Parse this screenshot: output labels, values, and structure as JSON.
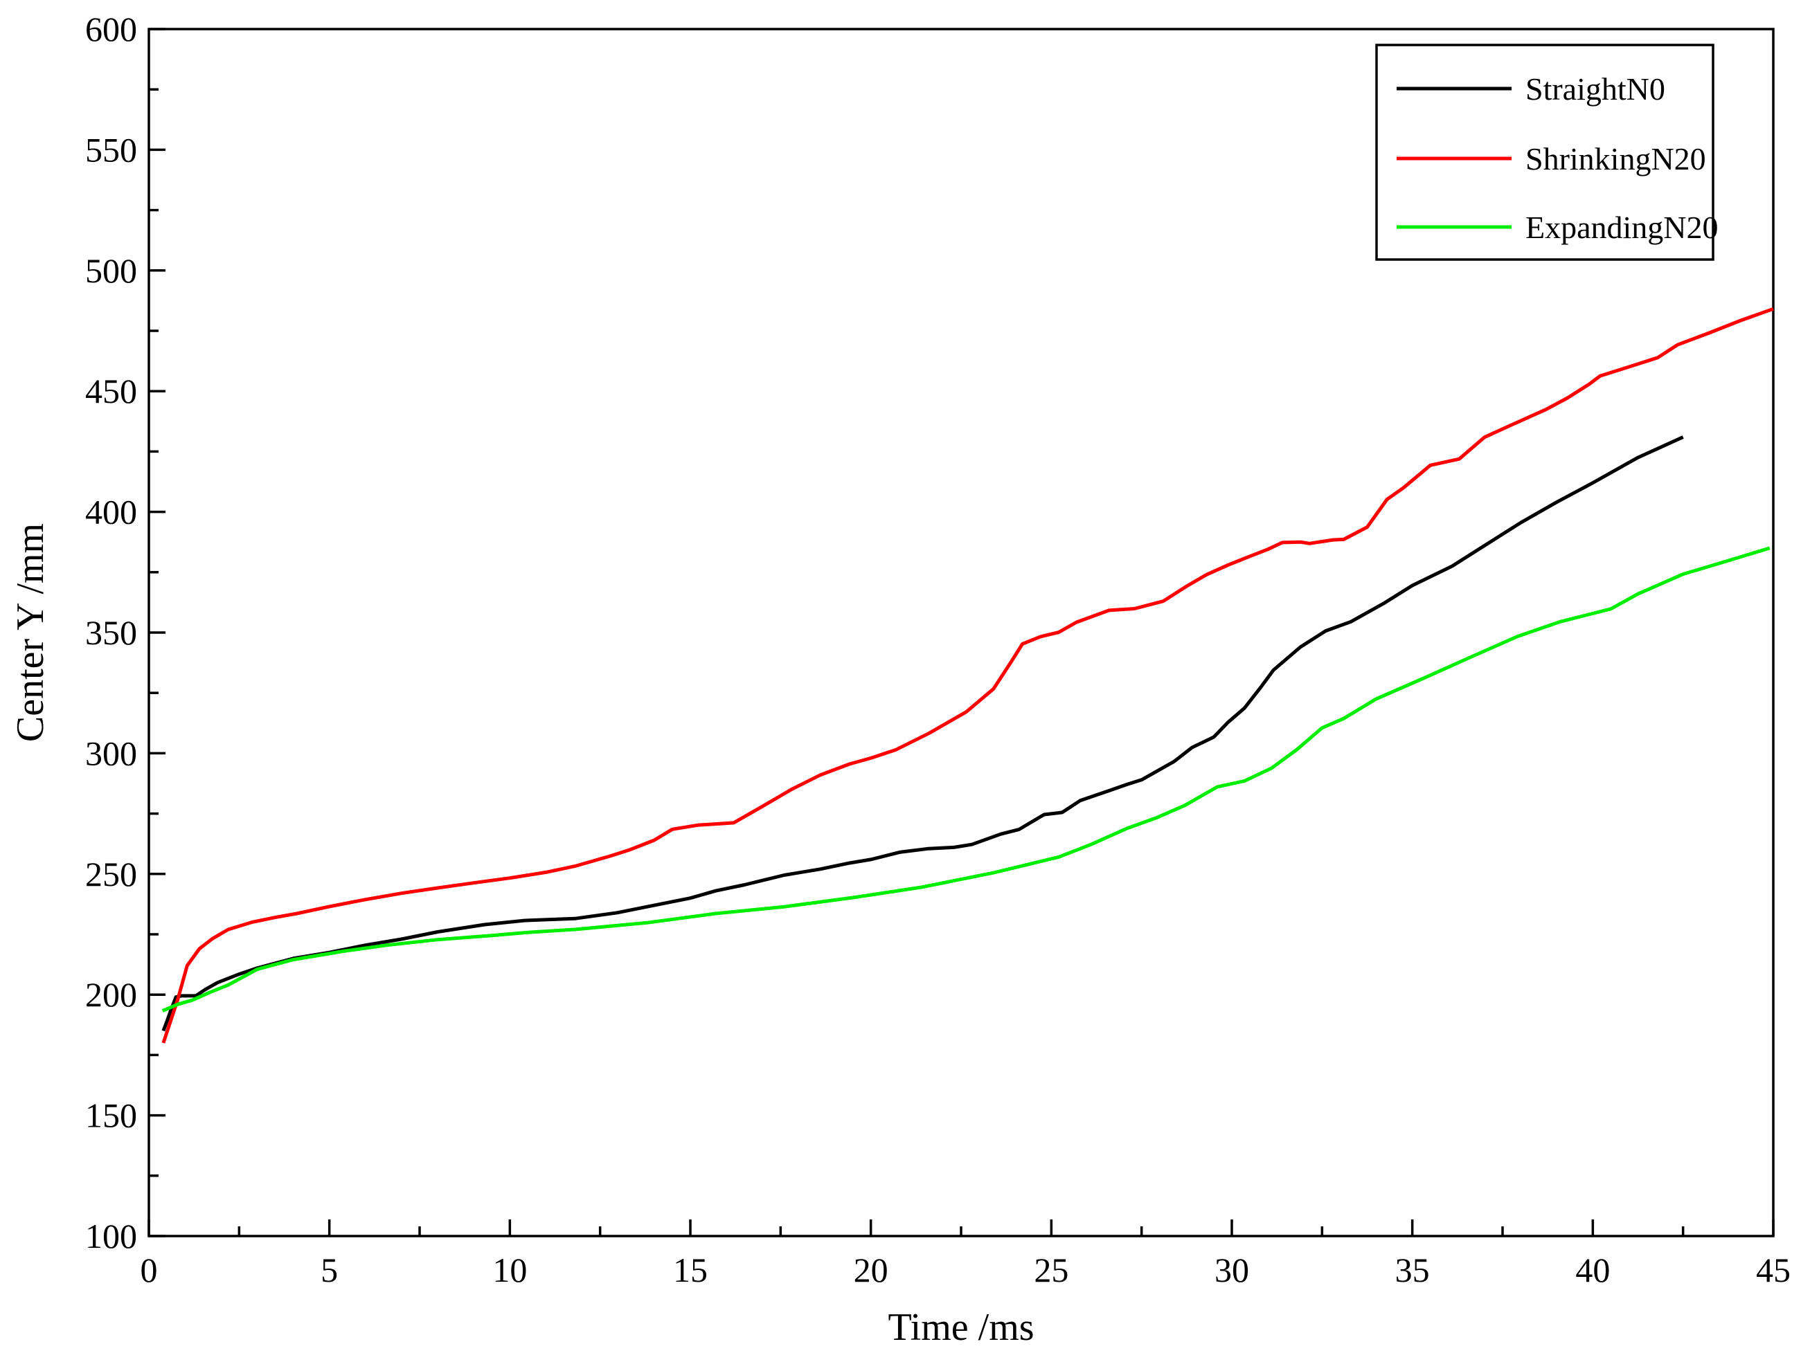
{
  "chart_data": {
    "type": "line",
    "title": "",
    "xlabel": "Time /ms",
    "ylabel": "Center Y /mm",
    "xlim": [
      0,
      45
    ],
    "ylim": [
      100,
      600
    ],
    "x_major_ticks": [
      0,
      5,
      10,
      15,
      20,
      25,
      30,
      35,
      40,
      45
    ],
    "y_major_ticks": [
      100,
      150,
      200,
      250,
      300,
      350,
      400,
      450,
      500,
      550,
      600
    ],
    "x_minor_step": 2.5,
    "y_minor_step": 25,
    "grid": false,
    "legend_position": "top-right",
    "frame": true,
    "axis_color": "#000000",
    "background_color": "#ffffff",
    "series": [
      {
        "name": "StraightN0",
        "color": "#000000",
        "points": [
          [
            0.4,
            185
          ],
          [
            0.5,
            189
          ],
          [
            0.62,
            194
          ],
          [
            0.75,
            199
          ],
          [
            0.9,
            199.5
          ],
          [
            1.3,
            199.5
          ],
          [
            1.55,
            202
          ],
          [
            1.9,
            205
          ],
          [
            2.5,
            208.5
          ],
          [
            3,
            211
          ],
          [
            4,
            215
          ],
          [
            5,
            217.5
          ],
          [
            6,
            220.5
          ],
          [
            7,
            223
          ],
          [
            8,
            226
          ],
          [
            9.3,
            229
          ],
          [
            10.4,
            230.7
          ],
          [
            11.8,
            231.5
          ],
          [
            13,
            234
          ],
          [
            13.8,
            236.4
          ],
          [
            15,
            240
          ],
          [
            15.7,
            243
          ],
          [
            16.5,
            245.5
          ],
          [
            17.6,
            249.5
          ],
          [
            18.6,
            252
          ],
          [
            19.4,
            254.5
          ],
          [
            20,
            256
          ],
          [
            20.8,
            259
          ],
          [
            21.6,
            260.5
          ],
          [
            22.3,
            261
          ],
          [
            22.8,
            262.2
          ],
          [
            23.6,
            266.5
          ],
          [
            24.1,
            268.4
          ],
          [
            24.8,
            274.6
          ],
          [
            25.3,
            275.5
          ],
          [
            25.8,
            280.4
          ],
          [
            26.6,
            284.5
          ],
          [
            27.1,
            287.1
          ],
          [
            27.5,
            289
          ],
          [
            28.4,
            296.6
          ],
          [
            28.9,
            302.4
          ],
          [
            29.5,
            306.7
          ],
          [
            29.9,
            312.9
          ],
          [
            30.35,
            318.7
          ],
          [
            30.8,
            327.3
          ],
          [
            31.15,
            334.4
          ],
          [
            31.9,
            344
          ],
          [
            32.6,
            350.7
          ],
          [
            33.3,
            354.5
          ],
          [
            34.2,
            362
          ],
          [
            35,
            369.5
          ],
          [
            36.1,
            377.5
          ],
          [
            37,
            386
          ],
          [
            38,
            395.5
          ],
          [
            39,
            404
          ],
          [
            40,
            412
          ],
          [
            41.25,
            422.5
          ],
          [
            42.5,
            431
          ]
        ]
      },
      {
        "name": "ShrinkingN20",
        "color": "#ff0000",
        "points": [
          [
            0.4,
            180
          ],
          [
            0.6,
            189
          ],
          [
            0.8,
            198
          ],
          [
            1.06,
            212
          ],
          [
            1.4,
            219
          ],
          [
            1.76,
            223.2
          ],
          [
            2.2,
            227
          ],
          [
            2.85,
            230
          ],
          [
            3.5,
            232
          ],
          [
            4.1,
            233.6
          ],
          [
            5,
            236.5
          ],
          [
            6,
            239.4
          ],
          [
            7,
            242
          ],
          [
            8,
            244.2
          ],
          [
            9,
            246.3
          ],
          [
            10,
            248.3
          ],
          [
            11,
            250.7
          ],
          [
            11.8,
            253.2
          ],
          [
            12.8,
            257.5
          ],
          [
            13.3,
            259.9
          ],
          [
            14,
            264
          ],
          [
            14.5,
            268.5
          ],
          [
            15.2,
            270.2
          ],
          [
            16.2,
            271.2
          ],
          [
            17,
            278
          ],
          [
            17.8,
            285
          ],
          [
            18.6,
            291
          ],
          [
            19.4,
            295.5
          ],
          [
            20,
            298
          ],
          [
            20.7,
            301.5
          ],
          [
            21.6,
            308.2
          ],
          [
            22.65,
            317.2
          ],
          [
            23.4,
            326.7
          ],
          [
            23.9,
            338.2
          ],
          [
            24.2,
            345.3
          ],
          [
            24.7,
            348.3
          ],
          [
            25.2,
            350.1
          ],
          [
            25.7,
            354.3
          ],
          [
            26.6,
            359.2
          ],
          [
            27.3,
            359.9
          ],
          [
            28.1,
            363
          ],
          [
            28.75,
            369.2
          ],
          [
            29.3,
            374
          ],
          [
            29.9,
            378
          ],
          [
            30.5,
            381.6
          ],
          [
            31,
            384.5
          ],
          [
            31.4,
            387.3
          ],
          [
            31.9,
            387.5
          ],
          [
            32.15,
            386.9
          ],
          [
            32.8,
            388.4
          ],
          [
            33.1,
            388.6
          ],
          [
            33.75,
            393.7
          ],
          [
            34.3,
            405.2
          ],
          [
            34.75,
            409.9
          ],
          [
            35.5,
            419.3
          ],
          [
            36.3,
            421.9
          ],
          [
            37,
            430.9
          ],
          [
            37.7,
            435.7
          ],
          [
            38.7,
            442.4
          ],
          [
            39.3,
            447.2
          ],
          [
            39.9,
            452.9
          ],
          [
            40.2,
            456.3
          ],
          [
            40.9,
            459.6
          ],
          [
            41.8,
            463.9
          ],
          [
            42.35,
            469.2
          ],
          [
            43.2,
            474
          ],
          [
            44.1,
            479.3
          ],
          [
            45,
            484.1
          ]
        ]
      },
      {
        "name": "ExpandingN20",
        "color": "#00ee00",
        "points": [
          [
            0.38,
            193.3
          ],
          [
            0.8,
            196
          ],
          [
            1.2,
            197.7
          ],
          [
            1.7,
            201
          ],
          [
            2.2,
            204
          ],
          [
            3,
            210.5
          ],
          [
            4,
            214.5
          ],
          [
            5.4,
            218
          ],
          [
            6.6,
            220.5
          ],
          [
            8,
            222.8
          ],
          [
            9.5,
            224.5
          ],
          [
            10.5,
            225.8
          ],
          [
            11.8,
            227
          ],
          [
            13.8,
            229.8
          ],
          [
            15.7,
            233.6
          ],
          [
            17.6,
            236.4
          ],
          [
            19.5,
            240.2
          ],
          [
            21.4,
            244.5
          ],
          [
            23.4,
            250.5
          ],
          [
            25.2,
            257
          ],
          [
            26.1,
            262.2
          ],
          [
            27.1,
            268.9
          ],
          [
            27.9,
            273.2
          ],
          [
            28.7,
            278.4
          ],
          [
            29.6,
            286.1
          ],
          [
            30.35,
            288.5
          ],
          [
            31.1,
            293.8
          ],
          [
            31.8,
            301.5
          ],
          [
            32.5,
            310.5
          ],
          [
            33.1,
            314.4
          ],
          [
            34,
            322.5
          ],
          [
            35.3,
            331
          ],
          [
            36.6,
            339.7
          ],
          [
            37.9,
            348.3
          ],
          [
            39.1,
            354.5
          ],
          [
            40.5,
            359.8
          ],
          [
            41.25,
            366
          ],
          [
            42.5,
            374.2
          ],
          [
            43.8,
            380
          ],
          [
            44.9,
            385
          ]
        ]
      }
    ],
    "legend": {
      "entries": [
        "StraightN0",
        "ShrinkingN20",
        "ExpandingN20"
      ]
    }
  }
}
